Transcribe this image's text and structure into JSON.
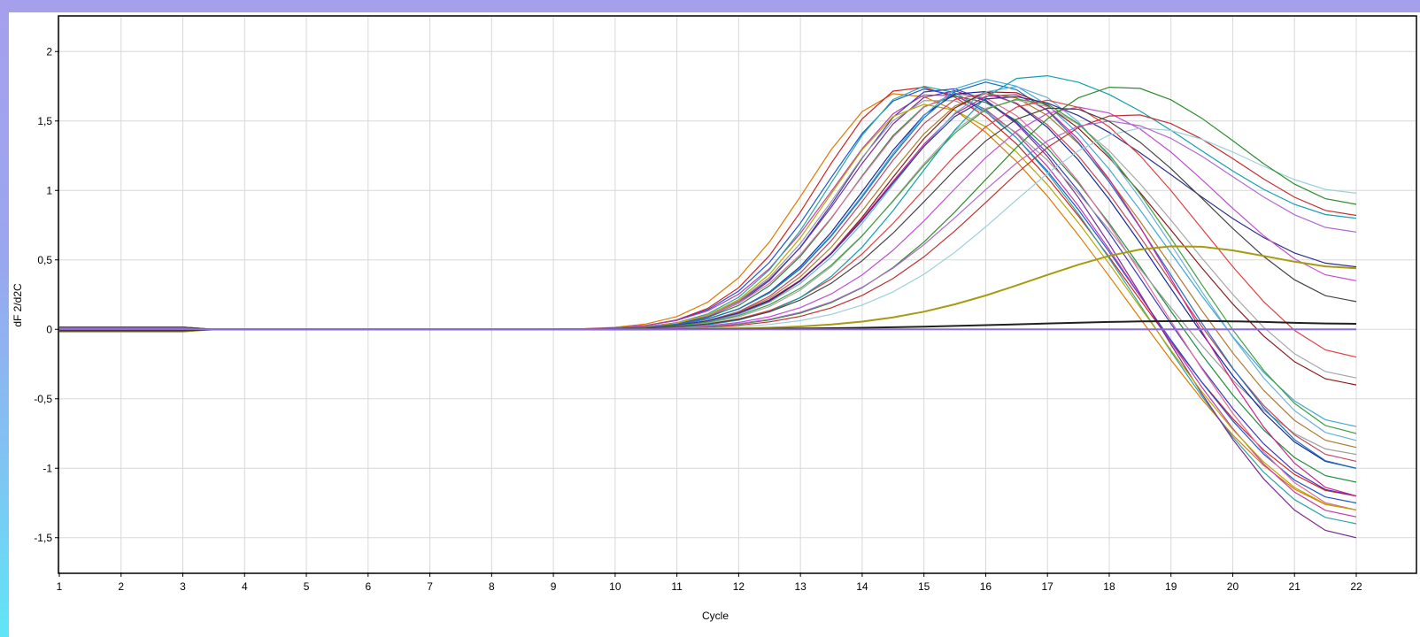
{
  "chart_data": {
    "type": "line",
    "title": "",
    "xlabel": "Cycle",
    "ylabel": "dF 2/d2C",
    "xlim": [
      1,
      22
    ],
    "ylim": [
      -1.75,
      2.25
    ],
    "grid": true,
    "legend": "none",
    "x_ticks": [
      1,
      2,
      3,
      4,
      5,
      6,
      7,
      8,
      9,
      10,
      11,
      12,
      13,
      14,
      15,
      16,
      17,
      18,
      19,
      20,
      21,
      22
    ],
    "y_ticks": [
      2,
      1.5,
      1,
      0.5,
      0,
      -0.5,
      -1,
      -1.5
    ],
    "y_tick_labels": [
      "2",
      "1,5",
      "1",
      "0,5",
      "0",
      "-0,5",
      "-1",
      "-1,5"
    ],
    "x_tick_labels": [
      "1",
      "2",
      "3",
      "4",
      "5",
      "6",
      "7",
      "8",
      "9",
      "10",
      "11",
      "12",
      "13",
      "14",
      "15",
      "16",
      "17",
      "18",
      "19",
      "20",
      "21",
      "22"
    ],
    "series_model": "Approximately 60 overlapping amplification curves; each rises from ~0, peaks at amplitude A near cycle P with rise width W, then falls to an end value E at cycle 22.",
    "series": [
      {
        "color": "#e07800",
        "peak_cycle": 14.6,
        "peak": 1.7,
        "width": 2.0,
        "end": -1.3
      },
      {
        "color": "#d42020",
        "peak_cycle": 14.8,
        "peak": 1.75,
        "width": 2.0,
        "end": -1.2
      },
      {
        "color": "#1a56d6",
        "peak_cycle": 15.0,
        "peak": 1.73,
        "width": 2.1,
        "end": -1.25
      },
      {
        "color": "#c23ab0",
        "peak_cycle": 15.2,
        "peak": 1.7,
        "width": 2.2,
        "end": -1.35
      },
      {
        "color": "#2aa7a0",
        "peak_cycle": 15.0,
        "peak": 1.75,
        "width": 2.0,
        "end": -1.4
      },
      {
        "color": "#7b2b8f",
        "peak_cycle": 15.4,
        "peak": 1.72,
        "width": 2.2,
        "end": -1.5
      },
      {
        "color": "#1c8f3c",
        "peak_cycle": 15.5,
        "peak": 1.68,
        "width": 2.2,
        "end": -1.1
      },
      {
        "color": "#3b3bb8",
        "peak_cycle": 15.3,
        "peak": 1.74,
        "width": 2.1,
        "end": -1.2
      },
      {
        "color": "#e26c9c",
        "peak_cycle": 15.6,
        "peak": 1.7,
        "width": 2.3,
        "end": -1.3
      },
      {
        "color": "#9c9c9c",
        "peak_cycle": 15.2,
        "peak": 1.66,
        "width": 2.1,
        "end": -0.9
      },
      {
        "color": "#b8a800",
        "peak_cycle": 15.0,
        "peak": 1.62,
        "width": 2.0,
        "end": -1.3
      },
      {
        "color": "#0d2a9c",
        "peak_cycle": 15.8,
        "peak": 1.72,
        "width": 2.3,
        "end": -1.0
      },
      {
        "color": "#c04a5c",
        "peak_cycle": 15.9,
        "peak": 1.7,
        "width": 2.3,
        "end": -0.95
      },
      {
        "color": "#3fa7d6",
        "peak_cycle": 16.0,
        "peak": 1.8,
        "width": 2.4,
        "end": -0.7
      },
      {
        "color": "#b07a30",
        "peak_cycle": 16.1,
        "peak": 1.7,
        "width": 2.4,
        "end": -0.85
      },
      {
        "color": "#2070c0",
        "peak_cycle": 16.0,
        "peak": 1.78,
        "width": 2.4,
        "end": -1.0
      },
      {
        "color": "#8a1a1a",
        "peak_cycle": 16.2,
        "peak": 1.72,
        "width": 2.4,
        "end": -0.4
      },
      {
        "color": "#d02090",
        "peak_cycle": 16.3,
        "peak": 1.7,
        "width": 2.5,
        "end": -1.2
      },
      {
        "color": "#6ab0d8",
        "peak_cycle": 16.4,
        "peak": 1.75,
        "width": 2.5,
        "end": -0.8
      },
      {
        "color": "#a8a8a8",
        "peak_cycle": 16.5,
        "peak": 1.65,
        "width": 2.5,
        "end": -0.35
      },
      {
        "color": "#2f2f8f",
        "peak_cycle": 16.3,
        "peak": 1.68,
        "width": 2.5,
        "end": 0.45
      },
      {
        "color": "#40a040",
        "peak_cycle": 16.6,
        "peak": 1.66,
        "width": 2.6,
        "end": -0.75
      },
      {
        "color": "#e04040",
        "peak_cycle": 17.0,
        "peak": 1.65,
        "width": 2.7,
        "end": -0.2
      },
      {
        "color": "#10a0b0",
        "peak_cycle": 16.8,
        "peak": 1.83,
        "width": 2.5,
        "end": 0.8
      },
      {
        "color": "#c050d0",
        "peak_cycle": 17.5,
        "peak": 1.6,
        "width": 2.8,
        "end": 0.35
      },
      {
        "color": "#c03030",
        "peak_cycle": 18.3,
        "peak": 1.55,
        "width": 3.0,
        "end": 0.82
      },
      {
        "color": "#9cd0d8",
        "peak_cycle": 18.6,
        "peak": 1.45,
        "width": 3.0,
        "end": 0.98
      },
      {
        "color": "#2e8b2e",
        "peak_cycle": 18.2,
        "peak": 1.75,
        "width": 3.0,
        "end": 0.9
      },
      {
        "color": "#b06ad0",
        "peak_cycle": 18.0,
        "peak": 1.5,
        "width": 3.0,
        "end": 0.7
      },
      {
        "color": "#444444",
        "peak_cycle": 17.2,
        "peak": 1.6,
        "width": 2.8,
        "end": 0.2
      },
      {
        "color": "#a89a10",
        "peak_cycle": 19.2,
        "peak": 0.6,
        "width": 3.2,
        "end": 0.44
      },
      {
        "color": "#202020",
        "peak_cycle": 19.5,
        "peak": 0.06,
        "width": 4.0,
        "end": 0.04
      },
      {
        "color": "#8d6cd4",
        "peak_cycle": 19.0,
        "peak": 0.0,
        "width": 4.0,
        "end": 0.0
      }
    ]
  }
}
